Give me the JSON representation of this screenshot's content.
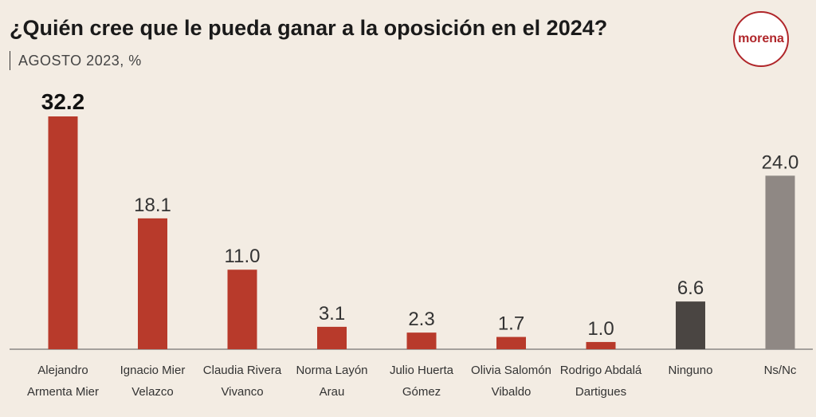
{
  "header": {
    "title": "¿Quién cree que le pueda ganar a la oposición en el 2024?",
    "subtitle": "AGOSTO 2023, %",
    "logo_text": "morena"
  },
  "colors": {
    "background": "#f3ece3",
    "candidate_bar": "#b83a2b",
    "ninguno_bar": "#4a4542",
    "nsnc_bar": "#8f8884",
    "logo": "#b0262a"
  },
  "chart_data": {
    "type": "bar",
    "title": "¿Quién cree que le pueda ganar a la oposición en el 2024?",
    "subtitle": "AGOSTO 2023, %",
    "categories": [
      [
        "Alejandro",
        "Armenta Mier"
      ],
      [
        "Ignacio Mier",
        "Velazco"
      ],
      [
        "Claudia Rivera",
        "Vivanco"
      ],
      [
        "Norma Layón",
        "Arau"
      ],
      [
        "Julio Huerta",
        "Gómez"
      ],
      [
        "Olivia Salomón",
        "Vibaldo"
      ],
      [
        "Rodrigo Abdalá",
        "Dartigues"
      ],
      [
        "Ninguno"
      ],
      [
        "Ns/Nc"
      ]
    ],
    "values": [
      32.2,
      18.1,
      11.0,
      3.1,
      2.3,
      1.7,
      1.0,
      6.6,
      24.0
    ],
    "value_labels": [
      "32.2",
      "18.1",
      "11.0",
      "3.1",
      "2.3",
      "1.7",
      "1.0",
      "6.6",
      "24.0"
    ],
    "bar_colors": [
      "#b83a2b",
      "#b83a2b",
      "#b83a2b",
      "#b83a2b",
      "#b83a2b",
      "#b83a2b",
      "#b83a2b",
      "#4a4542",
      "#8f8884"
    ],
    "highlight_index": 0,
    "ylim": [
      0,
      32.2
    ],
    "grid": false,
    "xlabel": "",
    "ylabel": ""
  }
}
